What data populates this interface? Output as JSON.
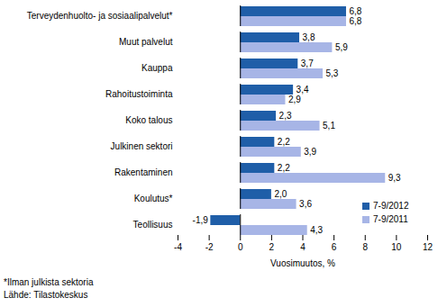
{
  "chart_data": {
    "type": "bar",
    "orientation": "horizontal",
    "categories": [
      "Terveydenhuolto- ja sosiaalipalvelut*",
      "Muut palvelut",
      "Kauppa",
      "Rahoitustoiminta",
      "Koko talous",
      "Julkinen sektori",
      "Rakentaminen",
      "Koulutus*",
      "Teollisuus"
    ],
    "series": [
      {
        "name": "7-9/2012",
        "color": "#1f5ea8",
        "values": [
          6.8,
          3.8,
          3.7,
          3.4,
          2.3,
          2.2,
          2.2,
          2.0,
          -1.9
        ],
        "value_labels": [
          "6,8",
          "3,8",
          "3,7",
          "3,4",
          "2,3",
          "2,2",
          "2,2",
          "2,0",
          "-1,9"
        ]
      },
      {
        "name": "7-9/2011",
        "color": "#a7b5e6",
        "values": [
          6.8,
          5.9,
          5.3,
          2.9,
          5.1,
          3.9,
          9.3,
          3.6,
          4.3
        ],
        "value_labels": [
          "6,8",
          "5,9",
          "5,3",
          "2,9",
          "5,1",
          "3,9",
          "9,3",
          "3,6",
          "4,3"
        ]
      }
    ],
    "xlabel": "Vuosimuutos, %",
    "xlim": [
      -4,
      12
    ],
    "xticks": [
      -4,
      -2,
      0,
      2,
      4,
      6,
      8,
      10,
      12
    ],
    "data_labels": true,
    "grid": false,
    "legend": "lower right",
    "annotations": [
      "*Ilman julkista sektoria",
      "Lähde: Tilastokeskus"
    ]
  }
}
